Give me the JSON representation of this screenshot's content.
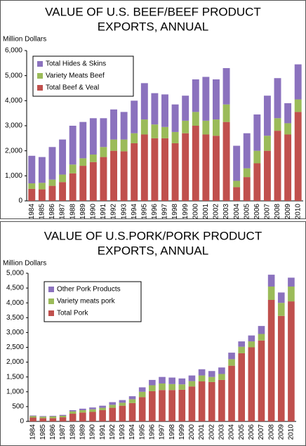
{
  "chart_data": [
    {
      "type": "stacked_bar",
      "title": [
        "VALUE OF U.S. BEEF/BEEF PRODUCT",
        "EXPORTS, ANNUAL"
      ],
      "y_label": "Million Dollars",
      "categories": [
        "1984",
        "1985",
        "1986",
        "1987",
        "1988",
        "1989",
        "1990",
        "1991",
        "1992",
        "1993",
        "1994",
        "1995",
        "1996",
        "1997",
        "1998",
        "1999",
        "2000",
        "2001",
        "2002",
        "2003",
        "2004",
        "2005",
        "2006",
        "2007",
        "2008",
        "2009",
        "2010"
      ],
      "series": [
        {
          "name": "Total Beef & Veal",
          "color": "#c0504d",
          "values": [
            480,
            460,
            600,
            750,
            1100,
            1400,
            1550,
            1750,
            2000,
            1980,
            2300,
            2650,
            2500,
            2500,
            2300,
            2700,
            3000,
            2650,
            2600,
            3150,
            550,
            950,
            1500,
            2000,
            2800,
            2650,
            3550
          ]
        },
        {
          "name": "Variety Meats Beef",
          "color": "#9bbb59",
          "values": [
            220,
            260,
            250,
            300,
            350,
            300,
            300,
            400,
            450,
            470,
            400,
            600,
            550,
            450,
            450,
            500,
            550,
            550,
            650,
            700,
            250,
            350,
            500,
            600,
            500,
            450,
            500
          ]
        },
        {
          "name": "Total Hides &  Skins",
          "color": "#8b72be",
          "values": [
            1100,
            1030,
            1300,
            1400,
            1550,
            1450,
            1450,
            1150,
            1200,
            1100,
            1300,
            1450,
            1250,
            1300,
            1100,
            1000,
            1300,
            1750,
            1600,
            1450,
            1400,
            1400,
            1450,
            1600,
            1600,
            800,
            1400
          ]
        }
      ],
      "ylim": [
        0,
        6000
      ],
      "yticks": [
        0,
        {
          "value": 1000,
          "label": "1,000"
        },
        {
          "value": 2000,
          "label": "2,000"
        },
        {
          "value": 3000,
          "label": "3,000"
        },
        {
          "value": 4000,
          "label": "4,000"
        },
        {
          "value": 5000,
          "label": "5,000"
        },
        {
          "value": 6000,
          "label": "6,000"
        }
      ],
      "legend": "upper left"
    },
    {
      "type": "stacked_bar",
      "title": [
        "VALUE OF U.S.PORK/PORK PRODUCT",
        "EXPORTS, ANNUAL"
      ],
      "y_label": "Million Dollars",
      "categories": [
        "1984",
        "1985",
        "1986",
        "1987",
        "1988",
        "1989",
        "1990",
        "1991",
        "1992",
        "1993",
        "1994",
        "1995",
        "1996",
        "1997",
        "1998",
        "1999",
        "2000",
        "2001",
        "2002",
        "2003",
        "2004",
        "2005",
        "2006",
        "2007",
        "2008",
        "2009",
        "2010"
      ],
      "series": [
        {
          "name": "Total Pork",
          "color": "#c0504d",
          "values": [
            130,
            110,
            110,
            140,
            260,
            300,
            320,
            380,
            460,
            530,
            620,
            820,
            1020,
            1060,
            1060,
            1070,
            1180,
            1350,
            1330,
            1400,
            1880,
            2300,
            2500,
            2730,
            4100,
            3560,
            4050
          ]
        },
        {
          "name": "Variety meats pork",
          "color": "#9bbb59",
          "values": [
            50,
            50,
            60,
            50,
            80,
            80,
            90,
            80,
            100,
            100,
            130,
            180,
            200,
            220,
            200,
            180,
            180,
            200,
            170,
            200,
            220,
            220,
            200,
            220,
            450,
            440,
            500
          ]
        },
        {
          "name": "Other Pork Products",
          "color": "#8b72be",
          "values": [
            20,
            20,
            20,
            30,
            40,
            50,
            60,
            70,
            90,
            90,
            100,
            150,
            180,
            220,
            220,
            200,
            190,
            210,
            200,
            220,
            220,
            180,
            200,
            270,
            400,
            350,
            300
          ]
        }
      ],
      "ylim": [
        0,
        5000
      ],
      "yticks": [
        0,
        500,
        {
          "value": 1000,
          "label": "1,000"
        },
        {
          "value": 1500,
          "label": "1,500"
        },
        {
          "value": 2000,
          "label": "2,000"
        },
        {
          "value": 2500,
          "label": "2,500"
        },
        {
          "value": 3000,
          "label": "3,000"
        },
        {
          "value": 3500,
          "label": "3,500"
        },
        {
          "value": 4000,
          "label": "4,000"
        },
        {
          "value": 4500,
          "label": "4,500"
        },
        {
          "value": 5000,
          "label": "5,000"
        }
      ],
      "legend": "upper left"
    }
  ]
}
